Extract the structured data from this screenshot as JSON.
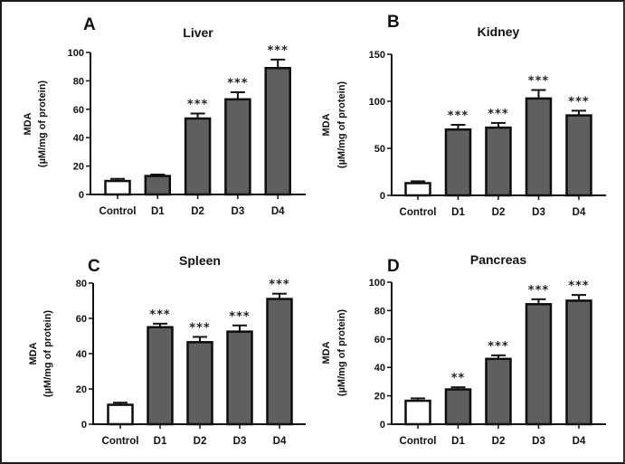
{
  "chart_data": [
    {
      "type": "bar",
      "panel": "A",
      "title": "Liver",
      "xlabel": "",
      "ylabel": [
        "MDA",
        "(µM/mg of protein)"
      ],
      "ylim": [
        0,
        100
      ],
      "yticks": [
        0,
        20,
        40,
        60,
        80,
        100
      ],
      "categories": [
        "Control",
        "D1",
        "D2",
        "D3",
        "D4"
      ],
      "values": [
        9.5,
        13,
        53.5,
        67,
        89
      ],
      "error_upper": [
        11,
        14,
        57,
        72,
        95
      ],
      "significance": [
        "",
        "",
        "***",
        "***",
        "***"
      ],
      "fill_colors": [
        "#ffffff",
        "#5f5f5f",
        "#5f5f5f",
        "#5f5f5f",
        "#5f5f5f"
      ],
      "grid": false
    },
    {
      "type": "bar",
      "panel": "B",
      "title": "Kidney",
      "xlabel": "",
      "ylabel": [
        "MDA",
        "(µM/mg of protein)"
      ],
      "ylim": [
        0,
        150
      ],
      "yticks": [
        0,
        50,
        100,
        150
      ],
      "categories": [
        "Control",
        "D1",
        "D2",
        "D3",
        "D4"
      ],
      "values": [
        13,
        70,
        72,
        103,
        85
      ],
      "error_upper": [
        15,
        75,
        77,
        112,
        90
      ],
      "significance": [
        "",
        "***",
        "***",
        "***",
        "***"
      ],
      "fill_colors": [
        "#ffffff",
        "#5f5f5f",
        "#5f5f5f",
        "#5f5f5f",
        "#5f5f5f"
      ],
      "grid": false
    },
    {
      "type": "bar",
      "panel": "C",
      "title": "Spleen",
      "xlabel": "",
      "ylabel": [
        "MDA",
        "(µM/mg of protein)"
      ],
      "ylim": [
        0,
        80
      ],
      "yticks": [
        0,
        20,
        40,
        60,
        80
      ],
      "categories": [
        "Control",
        "D1",
        "D2",
        "D3",
        "D4"
      ],
      "values": [
        11,
        55,
        46.5,
        52.5,
        71
      ],
      "error_upper": [
        12.2,
        57,
        49.5,
        56,
        74
      ],
      "significance": [
        "",
        "***",
        "***",
        "***",
        "***"
      ],
      "fill_colors": [
        "#ffffff",
        "#5f5f5f",
        "#5f5f5f",
        "#5f5f5f",
        "#5f5f5f"
      ],
      "grid": false
    },
    {
      "type": "bar",
      "panel": "D",
      "title": "Pancreas",
      "xlabel": "",
      "ylabel": [
        "MDA",
        "(µM/mg of protein)"
      ],
      "ylim": [
        0,
        100
      ],
      "yticks": [
        0,
        20,
        40,
        60,
        80,
        100
      ],
      "categories": [
        "Control",
        "D1",
        "D2",
        "D3",
        "D4"
      ],
      "values": [
        16.5,
        24.5,
        46,
        84.5,
        87
      ],
      "error_upper": [
        18.2,
        26,
        48.5,
        88,
        91
      ],
      "significance": [
        "",
        "**",
        "***",
        "***",
        "***"
      ],
      "fill_colors": [
        "#ffffff",
        "#5f5f5f",
        "#5f5f5f",
        "#5f5f5f",
        "#5f5f5f"
      ],
      "grid": false
    }
  ]
}
